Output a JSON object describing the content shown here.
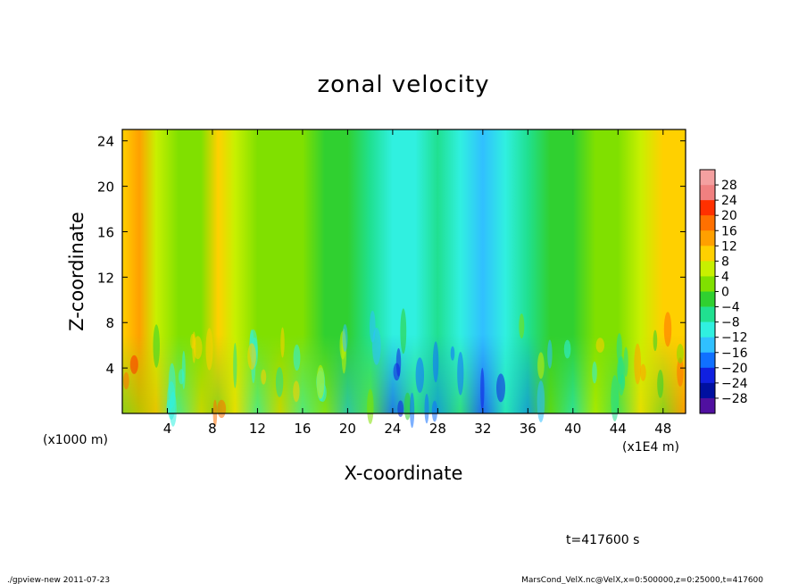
{
  "chart_data": {
    "type": "heatmap",
    "title": "zonal velocity",
    "xlabel": "X-coordinate",
    "ylabel": "Z-coordinate",
    "x_unit_label": "(x1E4 m)",
    "y_unit_label": "(x1000 m)",
    "xlim": [
      0,
      50
    ],
    "ylim": [
      0,
      25
    ],
    "x_ticks": [
      "4",
      "8",
      "12",
      "16",
      "20",
      "24",
      "28",
      "32",
      "36",
      "40",
      "44",
      "48"
    ],
    "y_ticks": [
      "4",
      "8",
      "12",
      "16",
      "20",
      "24"
    ],
    "x_tick_values": [
      4,
      8,
      12,
      16,
      20,
      24,
      28,
      32,
      36,
      40,
      44,
      48
    ],
    "y_tick_values": [
      4,
      8,
      12,
      16,
      20,
      24
    ],
    "colorbar_levels": [
      "28",
      "24",
      "20",
      "16",
      "12",
      "8",
      "4",
      "0",
      "−4",
      "−8",
      "−12",
      "−16",
      "−20",
      "−24",
      "−28"
    ],
    "colorbar_values": [
      28,
      24,
      20,
      16,
      12,
      8,
      4,
      0,
      -4,
      -8,
      -12,
      -16,
      -20,
      -24,
      -28
    ],
    "colorbar_colors": [
      "#f08080",
      "#ff3000",
      "#ff7000",
      "#ffa000",
      "#ffd000",
      "#c8f000",
      "#80e000",
      "#30d030",
      "#20e090",
      "#30f0e0",
      "#30c0ff",
      "#1070ff",
      "#1020e0",
      "#0010a0",
      "#5010a0"
    ],
    "colorbar_top_color": "#f4a0a0",
    "column_profile": [
      {
        "x": 0,
        "v": 12
      },
      {
        "x": 1.5,
        "v": 16
      },
      {
        "x": 3,
        "v": 10
      },
      {
        "x": 5,
        "v": 4
      },
      {
        "x": 7,
        "v": 6
      },
      {
        "x": 8.5,
        "v": 12
      },
      {
        "x": 10,
        "v": 8
      },
      {
        "x": 12,
        "v": 4
      },
      {
        "x": 14,
        "v": 6
      },
      {
        "x": 16,
        "v": 4
      },
      {
        "x": 18,
        "v": 2
      },
      {
        "x": 20,
        "v": 0
      },
      {
        "x": 22,
        "v": -2
      },
      {
        "x": 24,
        "v": -8
      },
      {
        "x": 26,
        "v": -6
      },
      {
        "x": 28,
        "v": -3
      },
      {
        "x": 30,
        "v": -6
      },
      {
        "x": 32,
        "v": -9
      },
      {
        "x": 34,
        "v": -8
      },
      {
        "x": 36,
        "v": -4
      },
      {
        "x": 38,
        "v": 0
      },
      {
        "x": 40,
        "v": 2
      },
      {
        "x": 42,
        "v": 4
      },
      {
        "x": 44,
        "v": 6
      },
      {
        "x": 46,
        "v": 8
      },
      {
        "x": 48,
        "v": 12
      },
      {
        "x": 50,
        "v": 14
      }
    ]
  },
  "annotations": {
    "time": "t=417600 s",
    "footer_left": "./gpview-new   2011-07-23",
    "footer_right": "MarsCond_VelX.nc@VelX,x=0:500000,z=0:25000,t=417600"
  }
}
